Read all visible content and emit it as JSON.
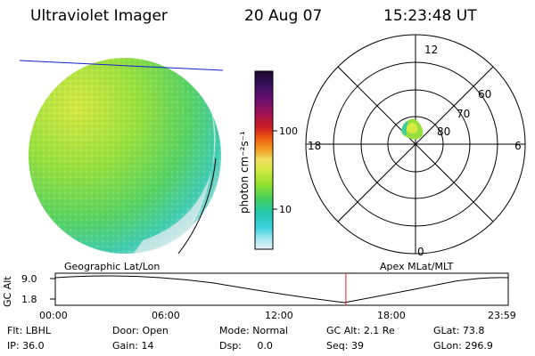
{
  "header": {
    "title": "Ultraviolet Imager",
    "date": "20 Aug 07",
    "time": "15:23:48 UT"
  },
  "colorbar": {
    "label": "photon cm⁻²s⁻¹",
    "ticks": [
      "100",
      "10"
    ],
    "colors": [
      "#1a0a2e",
      "#3a1060",
      "#6a1070",
      "#a01050",
      "#d02020",
      "#f06010",
      "#f0a020",
      "#f0e060",
      "#d0e840",
      "#90e030",
      "#40d060",
      "#20c8b0",
      "#40d0e0",
      "#a0e8f0",
      "#e8f0f4"
    ]
  },
  "polar": {
    "labels": {
      "top": "12",
      "bottom": "0",
      "left": "18",
      "right": "6"
    },
    "lat_labels": [
      "60",
      "70",
      "80"
    ]
  },
  "panels": {
    "left_label": "Geographic Lat/Lon",
    "right_label": "Apex MLat/MLT"
  },
  "orbit": {
    "ylabel": "GC Alt",
    "yticks": [
      "9.0",
      "1.8"
    ],
    "xticks": [
      "00:00",
      "06:00",
      "12:00",
      "18:00",
      "23:59"
    ],
    "marker_time_fraction": 0.6415
  },
  "info": [
    {
      "key": "Flt:",
      "value": "LBHL"
    },
    {
      "key": "IP:",
      "value": "36.0"
    },
    {
      "key": "Door:",
      "value": "Open"
    },
    {
      "key": "Gain:",
      "value": "14"
    },
    {
      "key": "Mode:",
      "value": "Normal"
    },
    {
      "key": "Dsp:",
      "value": "0.0"
    },
    {
      "key": "GC Alt:",
      "value": "2.1 Re"
    },
    {
      "key": "Seq:",
      "value": "39"
    },
    {
      "key": "GLat:",
      "value": "73.8"
    },
    {
      "key": "GLon:",
      "value": "296.9"
    }
  ]
}
